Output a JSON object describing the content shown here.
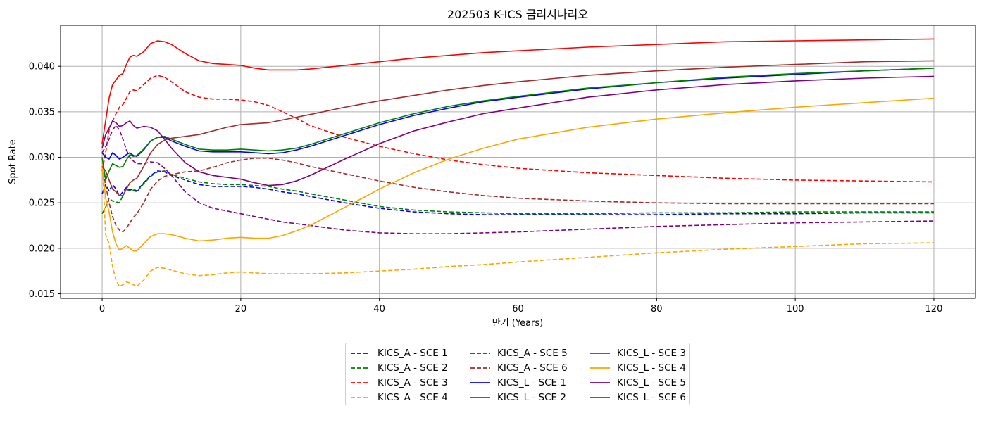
{
  "chart_data": {
    "type": "line",
    "title": "202503 K-ICS 금리시나리오",
    "xlabel": "만기 (Years)",
    "ylabel": "Spot Rate",
    "xlim": [
      -6,
      126
    ],
    "ylim": [
      0.0145,
      0.0445
    ],
    "xticks": [
      0,
      20,
      40,
      60,
      80,
      100,
      120
    ],
    "yticks": [
      0.015,
      0.02,
      0.025,
      0.03,
      0.035,
      0.04
    ],
    "xtick_labels": [
      "0",
      "20",
      "40",
      "60",
      "80",
      "100",
      "120"
    ],
    "ytick_labels": [
      "0.015",
      "0.020",
      "0.025",
      "0.030",
      "0.035",
      "0.040"
    ],
    "grid": true,
    "legend_position": "bottom-center, outside plot, 3 columns",
    "x": [
      0,
      0.5,
      1,
      1.5,
      2,
      2.5,
      3,
      3.5,
      4,
      4.5,
      5,
      6,
      7,
      8,
      9,
      10,
      12,
      14,
      16,
      18,
      20,
      22,
      24,
      26,
      28,
      30,
      35,
      40,
      45,
      50,
      55,
      60,
      70,
      80,
      90,
      100,
      110,
      120
    ],
    "series": [
      {
        "name": "KICS_A - SCE 1",
        "color": "#0000ff",
        "style": "dashed",
        "values": [
          0.026,
          0.027,
          0.0263,
          0.027,
          0.0265,
          0.0258,
          0.0262,
          0.0267,
          0.0264,
          0.0265,
          0.0263,
          0.0272,
          0.028,
          0.0285,
          0.0284,
          0.028,
          0.0275,
          0.027,
          0.0268,
          0.0268,
          0.0268,
          0.0267,
          0.0265,
          0.0262,
          0.026,
          0.0257,
          0.025,
          0.0244,
          0.024,
          0.0238,
          0.0237,
          0.0237,
          0.0237,
          0.0237,
          0.0238,
          0.0238,
          0.0239,
          0.0239
        ]
      },
      {
        "name": "KICS_A - SCE 2",
        "color": "#008000",
        "style": "dashed",
        "values": [
          0.0238,
          0.0245,
          0.0255,
          0.0252,
          0.0251,
          0.025,
          0.0258,
          0.0265,
          0.0263,
          0.0264,
          0.0262,
          0.0271,
          0.0279,
          0.0284,
          0.0285,
          0.0281,
          0.0277,
          0.0273,
          0.0271,
          0.027,
          0.027,
          0.0269,
          0.0268,
          0.0265,
          0.0263,
          0.026,
          0.0253,
          0.0246,
          0.0242,
          0.024,
          0.0239,
          0.0238,
          0.0238,
          0.0239,
          0.0239,
          0.024,
          0.024,
          0.024
        ]
      },
      {
        "name": "KICS_A - SCE 3",
        "color": "#ff0000",
        "style": "dashed",
        "values": [
          0.0285,
          0.0305,
          0.033,
          0.034,
          0.0348,
          0.0355,
          0.0358,
          0.0365,
          0.0372,
          0.0374,
          0.0373,
          0.038,
          0.0387,
          0.039,
          0.0388,
          0.0383,
          0.0372,
          0.0366,
          0.0364,
          0.0364,
          0.0363,
          0.0361,
          0.0357,
          0.035,
          0.0343,
          0.0335,
          0.0322,
          0.0312,
          0.0304,
          0.0297,
          0.0292,
          0.0288,
          0.0283,
          0.028,
          0.0277,
          0.0275,
          0.0274,
          0.0273
        ]
      },
      {
        "name": "KICS_A - SCE 4",
        "color": "#ffa500",
        "style": "dashed",
        "values": [
          0.03,
          0.0215,
          0.0205,
          0.018,
          0.0165,
          0.0158,
          0.016,
          0.0163,
          0.0162,
          0.016,
          0.0158,
          0.0165,
          0.0175,
          0.0179,
          0.0178,
          0.0176,
          0.0172,
          0.017,
          0.0171,
          0.0173,
          0.0174,
          0.0173,
          0.0172,
          0.0172,
          0.0172,
          0.0172,
          0.0173,
          0.0175,
          0.0177,
          0.018,
          0.0182,
          0.0185,
          0.019,
          0.0195,
          0.0199,
          0.0202,
          0.0205,
          0.0206
        ]
      },
      {
        "name": "KICS_A - SCE 5",
        "color": "#800080",
        "style": "dashed",
        "values": [
          0.0305,
          0.0312,
          0.032,
          0.033,
          0.0335,
          0.033,
          0.032,
          0.0308,
          0.03,
          0.0296,
          0.0293,
          0.0293,
          0.0295,
          0.0294,
          0.0288,
          0.028,
          0.0262,
          0.025,
          0.0244,
          0.0241,
          0.0238,
          0.0235,
          0.0232,
          0.0229,
          0.0227,
          0.0225,
          0.022,
          0.0217,
          0.0216,
          0.0216,
          0.0217,
          0.0218,
          0.0221,
          0.0224,
          0.0226,
          0.0228,
          0.0229,
          0.023
        ]
      },
      {
        "name": "KICS_A - SCE 6",
        "color": "#a52a2a",
        "style": "dashed",
        "values": [
          0.029,
          0.027,
          0.025,
          0.0235,
          0.0225,
          0.022,
          0.0218,
          0.0222,
          0.0228,
          0.0234,
          0.0238,
          0.025,
          0.0265,
          0.0274,
          0.0279,
          0.0281,
          0.0284,
          0.0285,
          0.0289,
          0.0294,
          0.0297,
          0.0299,
          0.0299,
          0.0297,
          0.0294,
          0.029,
          0.0282,
          0.0274,
          0.0267,
          0.0262,
          0.0258,
          0.0255,
          0.0252,
          0.025,
          0.0249,
          0.0249,
          0.0249,
          0.0249
        ]
      },
      {
        "name": "KICS_L - SCE 1",
        "color": "#0000ff",
        "style": "solid",
        "values": [
          0.0305,
          0.03,
          0.0298,
          0.0305,
          0.0302,
          0.0298,
          0.03,
          0.0303,
          0.0305,
          0.0302,
          0.0301,
          0.0308,
          0.0318,
          0.0322,
          0.0322,
          0.0318,
          0.0312,
          0.0307,
          0.0306,
          0.0306,
          0.0306,
          0.0305,
          0.0304,
          0.0305,
          0.0308,
          0.0312,
          0.0324,
          0.0336,
          0.0346,
          0.0354,
          0.0361,
          0.0366,
          0.0375,
          0.0382,
          0.0387,
          0.0391,
          0.0395,
          0.0398
        ]
      },
      {
        "name": "KICS_L - SCE 2",
        "color": "#008000",
        "style": "solid",
        "values": [
          0.03,
          0.0275,
          0.0285,
          0.0293,
          0.0291,
          0.0289,
          0.029,
          0.0297,
          0.0303,
          0.0301,
          0.0302,
          0.0309,
          0.0318,
          0.0322,
          0.0323,
          0.032,
          0.0314,
          0.0309,
          0.0308,
          0.0308,
          0.0309,
          0.0308,
          0.0307,
          0.0308,
          0.031,
          0.0314,
          0.0326,
          0.0338,
          0.0348,
          0.0356,
          0.0362,
          0.0367,
          0.0376,
          0.0382,
          0.0388,
          0.0392,
          0.0395,
          0.0398
        ]
      },
      {
        "name": "KICS_L - SCE 3",
        "color": "#ff0000",
        "style": "solid",
        "values": [
          0.0315,
          0.034,
          0.0365,
          0.038,
          0.0385,
          0.039,
          0.0392,
          0.0402,
          0.041,
          0.0412,
          0.0411,
          0.0416,
          0.0425,
          0.0428,
          0.0427,
          0.0424,
          0.0414,
          0.0406,
          0.0403,
          0.0402,
          0.0401,
          0.0398,
          0.0396,
          0.0396,
          0.0396,
          0.0397,
          0.0401,
          0.0405,
          0.0409,
          0.0412,
          0.0415,
          0.0417,
          0.0421,
          0.0424,
          0.0427,
          0.0428,
          0.0429,
          0.043
        ]
      },
      {
        "name": "KICS_L - SCE 4",
        "color": "#ffa500",
        "style": "solid",
        "values": [
          0.029,
          0.0255,
          0.024,
          0.0218,
          0.0205,
          0.0198,
          0.02,
          0.0203,
          0.02,
          0.0197,
          0.0197,
          0.0205,
          0.0213,
          0.0216,
          0.0216,
          0.0215,
          0.0211,
          0.0208,
          0.0209,
          0.0211,
          0.0212,
          0.0211,
          0.0211,
          0.0214,
          0.0219,
          0.0225,
          0.0245,
          0.0265,
          0.0283,
          0.0298,
          0.031,
          0.032,
          0.0333,
          0.0342,
          0.0349,
          0.0355,
          0.036,
          0.0365
        ]
      },
      {
        "name": "KICS_L - SCE 5",
        "color": "#800080",
        "style": "solid",
        "values": [
          0.031,
          0.0325,
          0.0332,
          0.034,
          0.0338,
          0.0334,
          0.0335,
          0.0338,
          0.034,
          0.0335,
          0.0332,
          0.0334,
          0.0333,
          0.0329,
          0.032,
          0.031,
          0.0294,
          0.0284,
          0.028,
          0.0278,
          0.0276,
          0.0272,
          0.0269,
          0.027,
          0.0274,
          0.028,
          0.0298,
          0.0315,
          0.0329,
          0.0339,
          0.0348,
          0.0354,
          0.0366,
          0.0374,
          0.038,
          0.0384,
          0.0387,
          0.0389
        ]
      },
      {
        "name": "KICS_L - SCE 6",
        "color": "#a52a2a",
        "style": "solid",
        "values": [
          0.029,
          0.0285,
          0.0275,
          0.0265,
          0.0262,
          0.0258,
          0.0258,
          0.0265,
          0.0272,
          0.0275,
          0.0277,
          0.029,
          0.0305,
          0.0314,
          0.0319,
          0.0321,
          0.0323,
          0.0325,
          0.0329,
          0.0333,
          0.0336,
          0.0337,
          0.0338,
          0.0341,
          0.0344,
          0.0347,
          0.0355,
          0.0362,
          0.0368,
          0.0374,
          0.0379,
          0.0383,
          0.039,
          0.0395,
          0.0399,
          0.0402,
          0.0405,
          0.0406
        ]
      }
    ]
  }
}
